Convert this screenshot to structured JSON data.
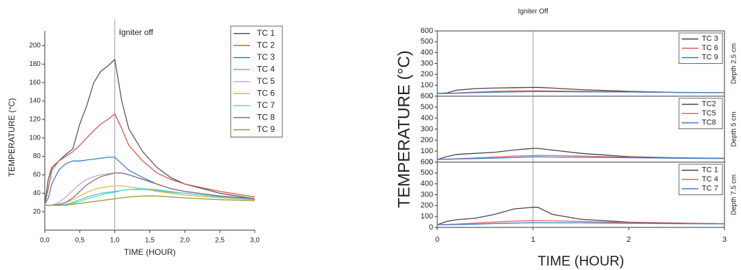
{
  "chart_data": [
    {
      "type": "line",
      "annotation": "Igniter off",
      "vline": 1,
      "xlabel": "TIME (HOUR)",
      "ylabel": "TEMPERATURE (°C)",
      "xlim": [
        0,
        3
      ],
      "xticks": [
        {
          "value": 0,
          "label": "0,0"
        },
        {
          "value": 0.5,
          "label": "0,5"
        },
        {
          "value": 1,
          "label": "1,0"
        },
        {
          "value": 1.5,
          "label": "1,5"
        },
        {
          "value": 2,
          "label": "2,0"
        },
        {
          "value": 2.5,
          "label": "2,5"
        },
        {
          "value": 3,
          "label": "3,0"
        }
      ],
      "ylim": [
        0,
        210
      ],
      "yticks": [
        20,
        40,
        60,
        80,
        100,
        120,
        140,
        160,
        180,
        200
      ],
      "x": [
        0,
        0.05,
        0.1,
        0.2,
        0.3,
        0.4,
        0.5,
        0.6,
        0.7,
        0.8,
        0.9,
        1.0,
        1.1,
        1.2,
        1.4,
        1.6,
        1.8,
        2.0,
        2.5,
        3.0
      ],
      "series": [
        {
          "name": "TC 1",
          "color": "#555555",
          "values": [
            28,
            55,
            68,
            75,
            82,
            88,
            115,
            135,
            160,
            172,
            178,
            185,
            140,
            110,
            85,
            68,
            57,
            50,
            40,
            34
          ]
        },
        {
          "name": "TC 2",
          "color": "#d9534f",
          "values": [
            28,
            45,
            65,
            75,
            80,
            85,
            92,
            100,
            108,
            115,
            120,
            126,
            110,
            92,
            75,
            62,
            55,
            50,
            42,
            36
          ]
        },
        {
          "name": "TC 3",
          "color": "#3a7ec8",
          "values": [
            28,
            35,
            50,
            65,
            72,
            75,
            75,
            76,
            77,
            78,
            79,
            79,
            72,
            65,
            57,
            50,
            45,
            42,
            37,
            34
          ]
        },
        {
          "name": "TC 4",
          "color": "#5fbfa8",
          "values": [
            27,
            27,
            27,
            27,
            28,
            30,
            33,
            36,
            38,
            40,
            41,
            42,
            43,
            44,
            44,
            43,
            41,
            40,
            36,
            33
          ]
        },
        {
          "name": "TC 5",
          "color": "#c3a6e6",
          "values": [
            27,
            27,
            27,
            30,
            36,
            43,
            50,
            55,
            58,
            60,
            61,
            62,
            62,
            60,
            55,
            50,
            45,
            42,
            37,
            34
          ]
        },
        {
          "name": "TC 6",
          "color": "#e0b84a",
          "values": [
            27,
            27,
            27,
            28,
            30,
            33,
            37,
            41,
            44,
            46,
            47,
            48,
            48,
            47,
            45,
            42,
            40,
            38,
            35,
            33
          ]
        },
        {
          "name": "TC 7",
          "color": "#4fd8e0",
          "values": [
            27,
            27,
            27,
            27,
            28,
            29,
            31,
            34,
            36,
            38,
            40,
            41,
            43,
            44,
            45,
            44,
            42,
            40,
            36,
            33
          ]
        },
        {
          "name": "TC 8",
          "color": "#8d6e73",
          "values": [
            27,
            27,
            27,
            28,
            30,
            35,
            42,
            49,
            54,
            58,
            60,
            62,
            62,
            60,
            55,
            50,
            45,
            42,
            37,
            34
          ]
        },
        {
          "name": "TC 9",
          "color": "#9a9a30",
          "values": [
            27,
            27,
            27,
            27,
            27,
            28,
            29,
            30,
            31,
            32,
            33,
            34,
            35,
            36,
            37,
            37,
            36,
            35,
            33,
            32
          ]
        }
      ]
    },
    {
      "type": "line",
      "annotation": "Igniter Off",
      "vline": 1,
      "panel_label": "Depth 2.5 cm",
      "ylabel": "TEMPERATURE (°C)",
      "xlim": [
        0,
        3
      ],
      "ylim": [
        0,
        600
      ],
      "yticks": [
        0,
        100,
        200,
        300,
        400,
        500,
        600
      ],
      "x": [
        0,
        0.1,
        0.2,
        0.4,
        0.6,
        0.8,
        1.0,
        1.05,
        1.2,
        1.5,
        2.0,
        2.5,
        3.0
      ],
      "series": [
        {
          "name": "TC 3",
          "color": "#444444",
          "values": [
            25,
            30,
            55,
            70,
            75,
            78,
            80,
            80,
            75,
            60,
            45,
            35,
            32
          ]
        },
        {
          "name": "TC 6",
          "color": "#e06060",
          "values": [
            25,
            25,
            30,
            38,
            45,
            48,
            50,
            50,
            48,
            45,
            40,
            35,
            32
          ]
        },
        {
          "name": "TC 9",
          "color": "#3a7ec8",
          "values": [
            25,
            25,
            28,
            32,
            36,
            40,
            42,
            42,
            42,
            40,
            38,
            34,
            32
          ]
        }
      ]
    },
    {
      "type": "line",
      "vline": 1,
      "panel_label": "Depth 5 cm",
      "xlim": [
        0,
        3
      ],
      "ylim": [
        0,
        600
      ],
      "yticks": [
        0,
        100,
        200,
        300,
        400,
        500,
        600
      ],
      "x": [
        0,
        0.1,
        0.2,
        0.4,
        0.6,
        0.8,
        1.0,
        1.05,
        1.2,
        1.5,
        2.0,
        2.5,
        3.0
      ],
      "series": [
        {
          "name": "TC2",
          "color": "#444444",
          "values": [
            25,
            50,
            70,
            80,
            90,
            110,
            125,
            125,
            110,
            80,
            50,
            40,
            35
          ]
        },
        {
          "name": "TC5",
          "color": "#e06060",
          "values": [
            25,
            27,
            30,
            38,
            46,
            55,
            60,
            62,
            60,
            55,
            45,
            38,
            34
          ]
        },
        {
          "name": "TC8",
          "color": "#3a7ec8",
          "values": [
            25,
            27,
            28,
            32,
            36,
            42,
            48,
            48,
            46,
            44,
            40,
            35,
            33
          ]
        }
      ]
    },
    {
      "type": "line",
      "vline": 1,
      "panel_label": "Depth 7.5 cm",
      "xlabel": "TIME (HOUR)",
      "xlim": [
        0,
        3
      ],
      "xticks": [
        0,
        1,
        2,
        3
      ],
      "ylim": [
        0,
        600
      ],
      "yticks": [
        0,
        100,
        200,
        300,
        400,
        500,
        600
      ],
      "x": [
        0,
        0.1,
        0.2,
        0.4,
        0.6,
        0.8,
        1.0,
        1.05,
        1.2,
        1.5,
        2.0,
        2.5,
        3.0
      ],
      "series": [
        {
          "name": "TC 1",
          "color": "#444444",
          "values": [
            25,
            55,
            70,
            85,
            120,
            170,
            185,
            185,
            120,
            75,
            48,
            40,
            34
          ]
        },
        {
          "name": "TC 4",
          "color": "#e06060",
          "values": [
            25,
            27,
            30,
            40,
            50,
            58,
            62,
            62,
            60,
            55,
            45,
            38,
            34
          ]
        },
        {
          "name": "TC 7",
          "color": "#3a7ec8",
          "values": [
            25,
            25,
            26,
            30,
            36,
            40,
            43,
            43,
            42,
            42,
            38,
            34,
            32
          ]
        }
      ]
    }
  ]
}
